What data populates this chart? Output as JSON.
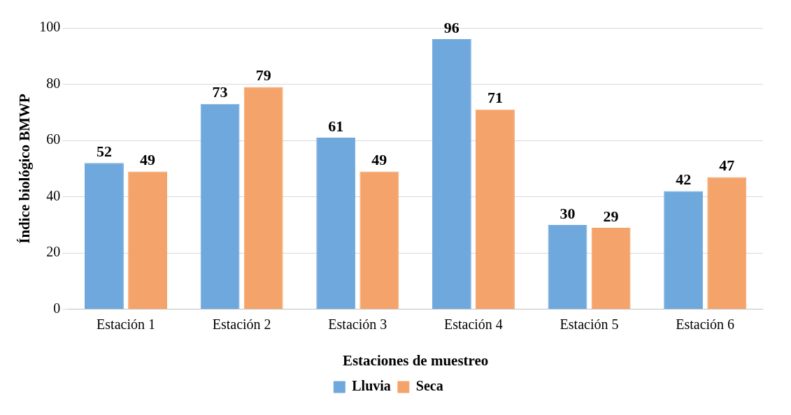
{
  "chart_data": {
    "type": "bar",
    "xlabel": "Estaciones de muestreo",
    "ylabel": "Índice biológico BMWP",
    "categories": [
      "Estación 1",
      "Estación 2",
      "Estación 3",
      "Estación 4",
      "Estación 5",
      "Estación 6"
    ],
    "series": [
      {
        "name": "Lluvia",
        "color": "#6fa8dc",
        "values": [
          52,
          73,
          61,
          96,
          30,
          42
        ]
      },
      {
        "name": "Seca",
        "color": "#f4a46a",
        "values": [
          49,
          79,
          49,
          71,
          29,
          47
        ]
      }
    ],
    "ylim": [
      0,
      100
    ],
    "yticks": [
      0,
      20,
      40,
      60,
      80,
      100
    ],
    "grid": "y",
    "legend": "bottom",
    "data_labels": true
  }
}
